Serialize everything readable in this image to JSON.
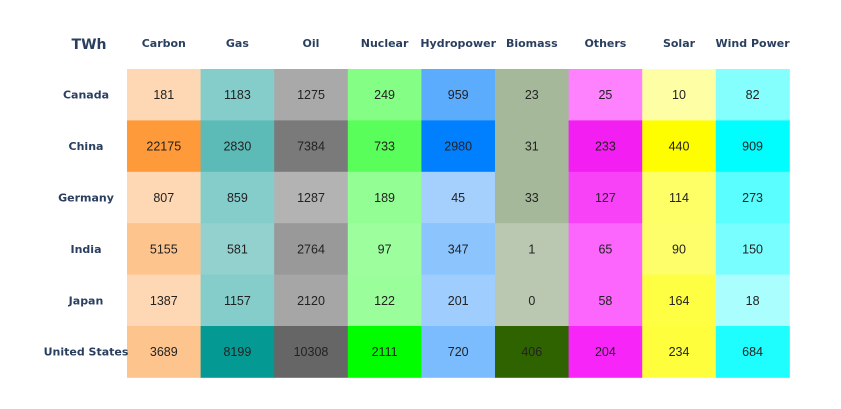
{
  "chart_data": {
    "type": "heatmap",
    "corner_label": "TWh",
    "columns": [
      "Carbon",
      "Gas",
      "Oil",
      "Nuclear",
      "Hydropower",
      "Biomass",
      "Others",
      "Solar",
      "Wind Power"
    ],
    "rows": [
      "Canada",
      "China",
      "Germany",
      "India",
      "Japan",
      "United States"
    ],
    "values": [
      [
        181,
        1183,
        1275,
        249,
        959,
        23,
        25,
        10,
        82
      ],
      [
        22175,
        2830,
        7384,
        733,
        2980,
        31,
        233,
        440,
        909
      ],
      [
        807,
        859,
        1287,
        189,
        45,
        33,
        127,
        114,
        273
      ],
      [
        5155,
        581,
        2764,
        97,
        347,
        1,
        65,
        90,
        150
      ],
      [
        1387,
        1157,
        2120,
        122,
        201,
        0,
        58,
        164,
        18
      ],
      [
        3689,
        8199,
        10308,
        2111,
        720,
        406,
        204,
        234,
        684
      ]
    ],
    "cell_colors": [
      [
        "#fed8b4",
        "#84cdca",
        "#a9a9a9",
        "#85fe85",
        "#5cacfe",
        "#a5b99a",
        "#fe82fe",
        "#fefea5",
        "#85fefe"
      ],
      [
        "#fe9a3a",
        "#5cbab7",
        "#7a7a7a",
        "#5afe5a",
        "#0080fe",
        "#a5b99a",
        "#f21ef2",
        "#fefe00",
        "#00fefe"
      ],
      [
        "#fed8b4",
        "#84cdca",
        "#b3b3b3",
        "#93fe93",
        "#a5d0fe",
        "#a5b99a",
        "#f842f8",
        "#fefe66",
        "#5afefe"
      ],
      [
        "#fec48e",
        "#92d1ce",
        "#999999",
        "#9dfe9d",
        "#8cc4fe",
        "#bac8b2",
        "#fc66fc",
        "#fefe6b",
        "#78fefe"
      ],
      [
        "#fed8b4",
        "#84cdca",
        "#a6a6a6",
        "#9afe9a",
        "#9ecdfe",
        "#bac8b2",
        "#fc66fc",
        "#fefe42",
        "#aafefe"
      ],
      [
        "#fec48e",
        "#059994",
        "#666666",
        "#00fe00",
        "#7abcfe",
        "#2f6300",
        "#f825f8",
        "#fefe3c",
        "#1ffefe"
      ]
    ]
  }
}
